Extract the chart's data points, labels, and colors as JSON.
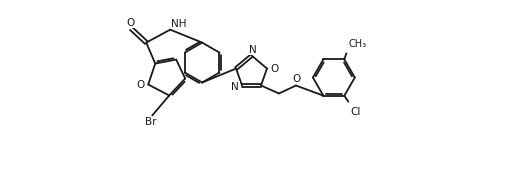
{
  "background_color": "#ffffff",
  "line_color": "#1a1a1a",
  "line_width": 1.3,
  "font_size": 7.5,
  "figsize": [
    5.26,
    1.81
  ],
  "dpi": 100,
  "xlim": [
    0,
    13.5
  ],
  "ylim": [
    0,
    9.0
  ]
}
